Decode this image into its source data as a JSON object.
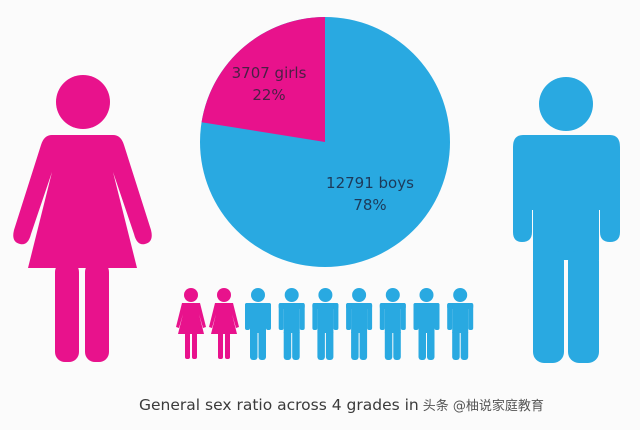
{
  "colors": {
    "girls": "#e8128c",
    "boys": "#29a9e1",
    "background": "#fbfbfb",
    "text": "#3b3b3b"
  },
  "labels": {
    "girls_count": "3707 girls",
    "girls_pct": "22%",
    "boys_count": "12791 boys",
    "boys_pct": "78%"
  },
  "caption": {
    "text": "General sex ratio across 4 grades in",
    "watermark": "头条 @柚说家庭教育"
  },
  "icon_row": {
    "girls": 2,
    "boys": 7
  },
  "chart_data": {
    "type": "pie",
    "title": "General sex ratio across 4 grades",
    "categories": [
      "girls",
      "boys"
    ],
    "values": [
      3707,
      12791
    ],
    "percentages": [
      22,
      78
    ],
    "labels": [
      "3707 girls 22%",
      "12791 boys 78%"
    ],
    "colors": [
      "#e8128c",
      "#29a9e1"
    ],
    "legend": "none",
    "annotations": [
      "pictogram row: 2 female icons, 7 male icons"
    ]
  }
}
